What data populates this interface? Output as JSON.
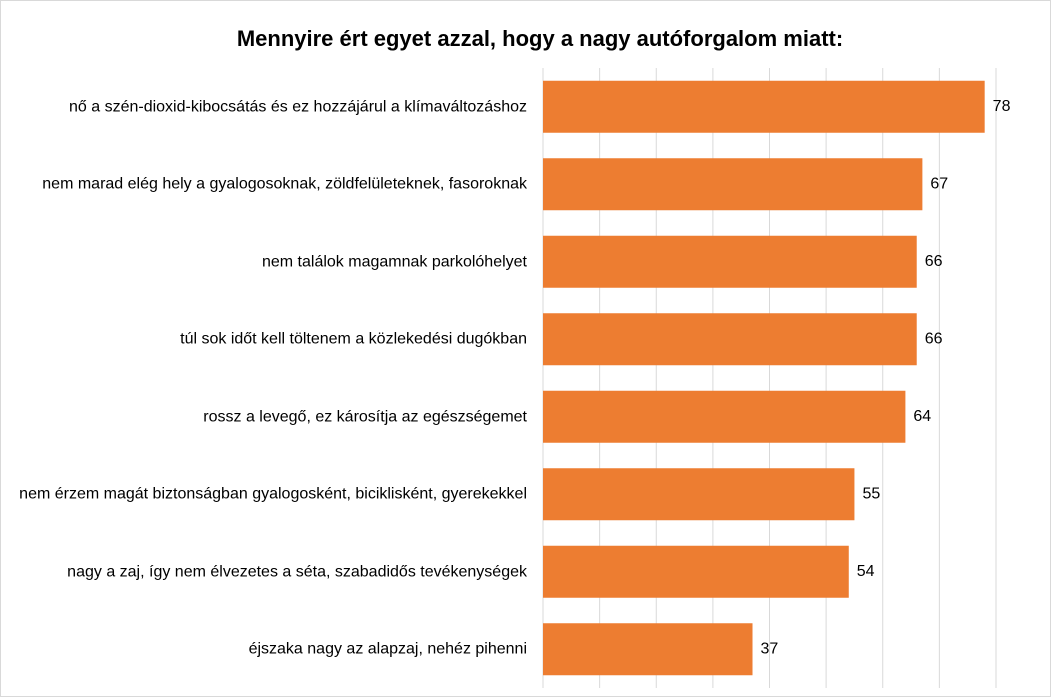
{
  "chart_data": {
    "type": "bar",
    "orientation": "horizontal",
    "title": "Mennyire ért egyet azzal, hogy a nagy autóforgalom miatt:",
    "categories": [
      "nő a szén-dioxid-kibocsátás és ez hozzájárul a klímaváltozáshoz",
      "nem marad elég hely a gyalogosoknak, zöldfelületeknek, fasoroknak",
      "nem találok magamnak parkolóhelyet",
      "túl sok időt kell töltenem a közlekedési dugókban",
      "rossz a levegő, ez károsítja az egészségemet",
      "nem érzem magát biztonságban gyalogosként, biciklisként, gyerekekkel",
      "nagy a zaj, így nem élvezetes a séta, szabadidős tevékenységek",
      "éjszaka nagy az alapzaj, nehéz pihenni"
    ],
    "values": [
      78,
      67,
      66,
      66,
      64,
      55,
      54,
      37
    ],
    "color": "#ed7d31",
    "xlim": [
      0,
      80
    ],
    "xticks": [
      0,
      10,
      20,
      30,
      40,
      50,
      60,
      70,
      80
    ],
    "grid": true
  }
}
